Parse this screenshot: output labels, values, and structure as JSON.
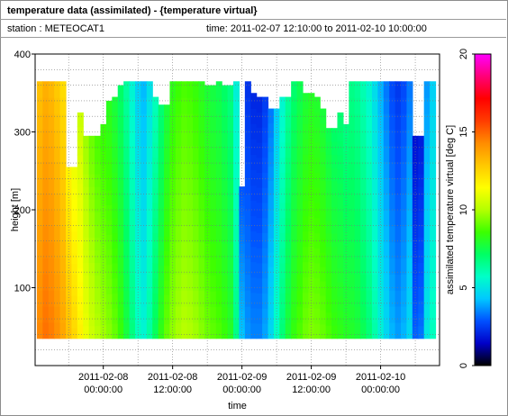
{
  "header": {
    "title": "temperature data (assimilated) - {temperature virtual}",
    "station": "station : METEOCAT1",
    "time_range": "time: 2011-02-07 12:10:00 to 2011-02-10 10:00:00"
  },
  "chart_data": {
    "type": "heatmap",
    "xlabel": "time",
    "ylabel": "height [m]",
    "colorbar_label": "assimilated temperature virtual [deg C]",
    "x_tick_labels": [
      [
        "2011-02-08",
        "00:00:00"
      ],
      [
        "2011-02-08",
        "12:00:00"
      ],
      [
        "2011-02-09",
        "00:00:00"
      ],
      [
        "2011-02-09",
        "12:00:00"
      ],
      [
        "2011-02-10",
        "00:00:00"
      ]
    ],
    "x_range_hours": [
      0,
      70
    ],
    "x_tick_hours": [
      11.8,
      23.8,
      35.8,
      47.8,
      59.8
    ],
    "y_range": [
      0,
      400
    ],
    "y_ticks": [
      100,
      200,
      300,
      400
    ],
    "colorbar_range": [
      0,
      20
    ],
    "colorbar_ticks": [
      0,
      5,
      10,
      15,
      20
    ],
    "grid": true,
    "colormap": [
      "#000000",
      "#0000c8",
      "#0050ff",
      "#00c8ff",
      "#00ffc8",
      "#00ff64",
      "#3cff00",
      "#b4ff00",
      "#ffff00",
      "#ffc800",
      "#ff8c00",
      "#ff3c00",
      "#ff0000",
      "#ff0078",
      "#ff00ff"
    ],
    "data_bottom_m": 35,
    "columns": [
      {
        "x": 0.8,
        "top": 365,
        "temp": 13.9
      },
      {
        "x": 1.8,
        "top": 365,
        "temp": 14.3
      },
      {
        "x": 2.8,
        "top": 365,
        "temp": 14.1
      },
      {
        "x": 3.8,
        "top": 365,
        "temp": 13.7
      },
      {
        "x": 4.8,
        "top": 365,
        "temp": 13.2
      },
      {
        "x": 5.8,
        "top": 255,
        "temp": 12.6
      },
      {
        "x": 6.8,
        "top": 255,
        "temp": 12.0
      },
      {
        "x": 7.8,
        "top": 325,
        "temp": 11.3
      },
      {
        "x": 8.8,
        "top": 295,
        "temp": 10.6
      },
      {
        "x": 9.8,
        "top": 295,
        "temp": 10.0
      },
      {
        "x": 10.8,
        "top": 295,
        "temp": 9.6
      },
      {
        "x": 11.8,
        "top": 310,
        "temp": 9.3
      },
      {
        "x": 12.8,
        "top": 340,
        "temp": 9.0
      },
      {
        "x": 13.8,
        "top": 345,
        "temp": 8.6
      },
      {
        "x": 14.8,
        "top": 360,
        "temp": 8.0
      },
      {
        "x": 15.8,
        "top": 365,
        "temp": 7.2
      },
      {
        "x": 16.8,
        "top": 365,
        "temp": 6.3
      },
      {
        "x": 17.8,
        "top": 365,
        "temp": 5.4
      },
      {
        "x": 18.8,
        "top": 365,
        "temp": 5.0
      },
      {
        "x": 19.8,
        "top": 365,
        "temp": 5.8
      },
      {
        "x": 20.8,
        "top": 345,
        "temp": 6.8
      },
      {
        "x": 21.8,
        "top": 335,
        "temp": 7.8
      },
      {
        "x": 22.8,
        "top": 335,
        "temp": 8.6
      },
      {
        "x": 23.8,
        "top": 365,
        "temp": 9.1
      },
      {
        "x": 24.8,
        "top": 365,
        "temp": 9.4
      },
      {
        "x": 25.8,
        "top": 365,
        "temp": 9.6
      },
      {
        "x": 26.8,
        "top": 365,
        "temp": 9.5
      },
      {
        "x": 27.8,
        "top": 365,
        "temp": 9.3
      },
      {
        "x": 28.8,
        "top": 365,
        "temp": 9.0
      },
      {
        "x": 29.8,
        "top": 360,
        "temp": 8.7
      },
      {
        "x": 30.8,
        "top": 360,
        "temp": 8.5
      },
      {
        "x": 31.8,
        "top": 365,
        "temp": 8.3
      },
      {
        "x": 32.8,
        "top": 360,
        "temp": 8.0
      },
      {
        "x": 33.8,
        "top": 360,
        "temp": 7.6
      },
      {
        "x": 34.8,
        "top": 365,
        "temp": 6.2
      },
      {
        "x": 35.8,
        "top": 230,
        "temp": 3.8
      },
      {
        "x": 36.8,
        "top": 365,
        "temp": 3.2
      },
      {
        "x": 37.8,
        "top": 350,
        "temp": 3.0
      },
      {
        "x": 38.8,
        "top": 345,
        "temp": 3.0
      },
      {
        "x": 39.8,
        "top": 345,
        "temp": 3.4
      },
      {
        "x": 40.8,
        "top": 330,
        "temp": 4.2
      },
      {
        "x": 41.8,
        "top": 330,
        "temp": 5.3
      },
      {
        "x": 42.8,
        "top": 345,
        "temp": 6.4
      },
      {
        "x": 43.8,
        "top": 345,
        "temp": 7.3
      },
      {
        "x": 44.8,
        "top": 365,
        "temp": 7.9
      },
      {
        "x": 45.8,
        "top": 365,
        "temp": 8.3
      },
      {
        "x": 46.8,
        "top": 350,
        "temp": 8.7
      },
      {
        "x": 47.8,
        "top": 350,
        "temp": 8.9
      },
      {
        "x": 48.8,
        "top": 345,
        "temp": 8.8
      },
      {
        "x": 49.8,
        "top": 330,
        "temp": 8.6
      },
      {
        "x": 50.8,
        "top": 305,
        "temp": 8.3
      },
      {
        "x": 51.8,
        "top": 305,
        "temp": 8.0
      },
      {
        "x": 52.8,
        "top": 325,
        "temp": 7.8
      },
      {
        "x": 53.8,
        "top": 310,
        "temp": 7.6
      },
      {
        "x": 54.8,
        "top": 365,
        "temp": 7.5
      },
      {
        "x": 55.8,
        "top": 365,
        "temp": 7.3
      },
      {
        "x": 56.8,
        "top": 365,
        "temp": 6.9
      },
      {
        "x": 57.8,
        "top": 365,
        "temp": 6.4
      },
      {
        "x": 58.8,
        "top": 365,
        "temp": 5.7
      },
      {
        "x": 59.8,
        "top": 365,
        "temp": 4.9
      },
      {
        "x": 60.8,
        "top": 365,
        "temp": 4.2
      },
      {
        "x": 61.8,
        "top": 365,
        "temp": 3.6
      },
      {
        "x": 62.8,
        "top": 365,
        "temp": 3.3
      },
      {
        "x": 63.8,
        "top": 365,
        "temp": 3.6
      },
      {
        "x": 64.8,
        "top": 365,
        "temp": 4.2
      },
      {
        "x": 65.8,
        "top": 295,
        "temp": 2.6
      },
      {
        "x": 66.8,
        "top": 295,
        "temp": 2.8
      },
      {
        "x": 67.8,
        "top": 365,
        "temp": 4.6
      },
      {
        "x": 68.8,
        "top": 365,
        "temp": 5.4
      }
    ]
  }
}
